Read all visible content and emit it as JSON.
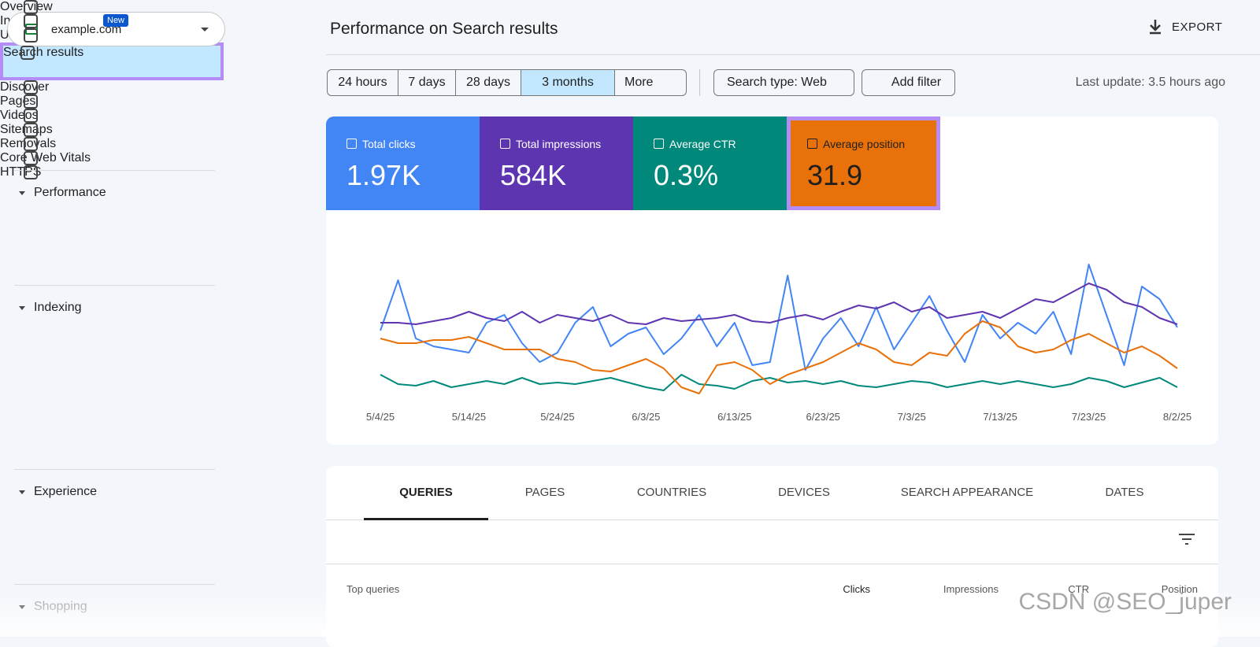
{
  "property": "example.com",
  "nav": {
    "top": [
      {
        "label": "Overview"
      },
      {
        "label": "Insights",
        "badge": "New"
      },
      {
        "label": "URL inspection"
      }
    ],
    "sections": [
      {
        "title": "Performance",
        "items": [
          "Search results",
          "Discover"
        ]
      },
      {
        "title": "Indexing",
        "items": [
          "Pages",
          "Videos",
          "Sitemaps",
          "Removals"
        ]
      },
      {
        "title": "Experience",
        "items": [
          "Core Web Vitals",
          "HTTPS"
        ]
      },
      {
        "title": "Shopping",
        "items": []
      }
    ]
  },
  "header": {
    "title": "Performance on Search results",
    "export": "EXPORT"
  },
  "filters": {
    "ranges": [
      "24 hours",
      "7 days",
      "28 days",
      "3 months",
      "More"
    ],
    "search_type": "Search type: Web",
    "add_filter": "Add filter",
    "last_update": "Last update: 3.5 hours ago"
  },
  "metrics": [
    {
      "label": "Total clicks",
      "value": "1.97K",
      "color": "#4285f4"
    },
    {
      "label": "Total impressions",
      "value": "584K",
      "color": "#5e35b1"
    },
    {
      "label": "Average CTR",
      "value": "0.3%",
      "color": "#00897b"
    },
    {
      "label": "Average position",
      "value": "31.9",
      "color": "#e8710a"
    }
  ],
  "chart_data": {
    "type": "line",
    "xticks": [
      "5/4/25",
      "5/14/25",
      "5/24/25",
      "6/3/25",
      "6/13/25",
      "6/23/25",
      "7/3/25",
      "7/13/25",
      "7/23/25",
      "8/2/25"
    ],
    "ylim": [
      0,
      100
    ],
    "series": [
      {
        "name": "Total clicks",
        "color": "#4285f4",
        "values": [
          50,
          82,
          45,
          40,
          38,
          36,
          55,
          60,
          42,
          30,
          36,
          55,
          65,
          40,
          48,
          52,
          35,
          45,
          60,
          40,
          55,
          28,
          30,
          85,
          25,
          45,
          58,
          40,
          65,
          38,
          55,
          72,
          50,
          30,
          60,
          45,
          55,
          48,
          62,
          35,
          92,
          60,
          28,
          78,
          70,
          52
        ]
      },
      {
        "name": "Total impressions",
        "color": "#5e35b1",
        "values": [
          55,
          55,
          54,
          56,
          58,
          62,
          58,
          56,
          62,
          55,
          60,
          58,
          56,
          60,
          55,
          54,
          58,
          56,
          57,
          58,
          60,
          56,
          55,
          58,
          60,
          57,
          62,
          66,
          64,
          68,
          62,
          65,
          58,
          60,
          62,
          58,
          64,
          70,
          68,
          74,
          80,
          76,
          68,
          65,
          58,
          54
        ]
      },
      {
        "name": "Average CTR",
        "color": "#00897b",
        "values": [
          22,
          16,
          15,
          18,
          14,
          16,
          18,
          16,
          20,
          16,
          17,
          16,
          18,
          20,
          17,
          14,
          12,
          22,
          16,
          15,
          13,
          18,
          20,
          17,
          18,
          16,
          18,
          15,
          14,
          16,
          18,
          17,
          14,
          16,
          18,
          16,
          18,
          16,
          14,
          16,
          20,
          18,
          14,
          17,
          20,
          14
        ]
      },
      {
        "name": "Average position",
        "color": "#e8710a",
        "values": [
          45,
          42,
          42,
          44,
          44,
          46,
          42,
          38,
          38,
          38,
          32,
          30,
          25,
          24,
          28,
          32,
          26,
          14,
          10,
          28,
          30,
          25,
          16,
          22,
          26,
          30,
          36,
          42,
          38,
          30,
          28,
          36,
          34,
          48,
          56,
          52,
          40,
          36,
          38,
          44,
          48,
          42,
          36,
          40,
          34,
          26
        ]
      }
    ]
  },
  "tabs": [
    "QUERIES",
    "PAGES",
    "COUNTRIES",
    "DEVICES",
    "SEARCH APPEARANCE",
    "DATES"
  ],
  "table": {
    "columns": [
      "Top queries",
      "Clicks",
      "Impressions",
      "CTR",
      "Position"
    ]
  },
  "watermark": "CSDN @SEO_juper"
}
